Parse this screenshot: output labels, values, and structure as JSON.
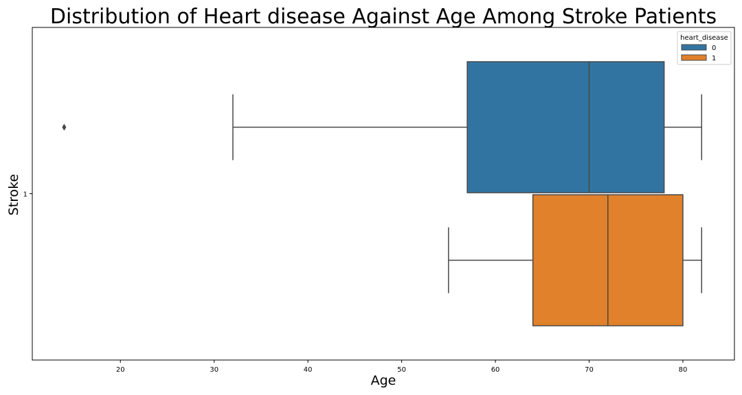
{
  "chart_data": {
    "type": "boxplot",
    "orientation": "horizontal",
    "title": "Distribution of Heart disease Against Age Among Stroke Patients",
    "xlabel": "Age",
    "ylabel": "Stroke",
    "xlim": [
      10.6,
      85.5
    ],
    "xticks": [
      20,
      30,
      40,
      50,
      60,
      70,
      80
    ],
    "categories": [
      "1"
    ],
    "grid": false,
    "legend": {
      "title": "heart_disease",
      "placement": "top-right"
    },
    "series": [
      {
        "name": "0",
        "color": "#3274a1",
        "whisker_low": 32,
        "q1": 57,
        "median": 70,
        "q3": 78,
        "whisker_high": 82,
        "outliers": [
          14
        ]
      },
      {
        "name": "1",
        "color": "#e1812c",
        "whisker_low": 55,
        "q1": 64,
        "median": 72,
        "q3": 80,
        "whisker_high": 82,
        "outliers": []
      }
    ]
  }
}
